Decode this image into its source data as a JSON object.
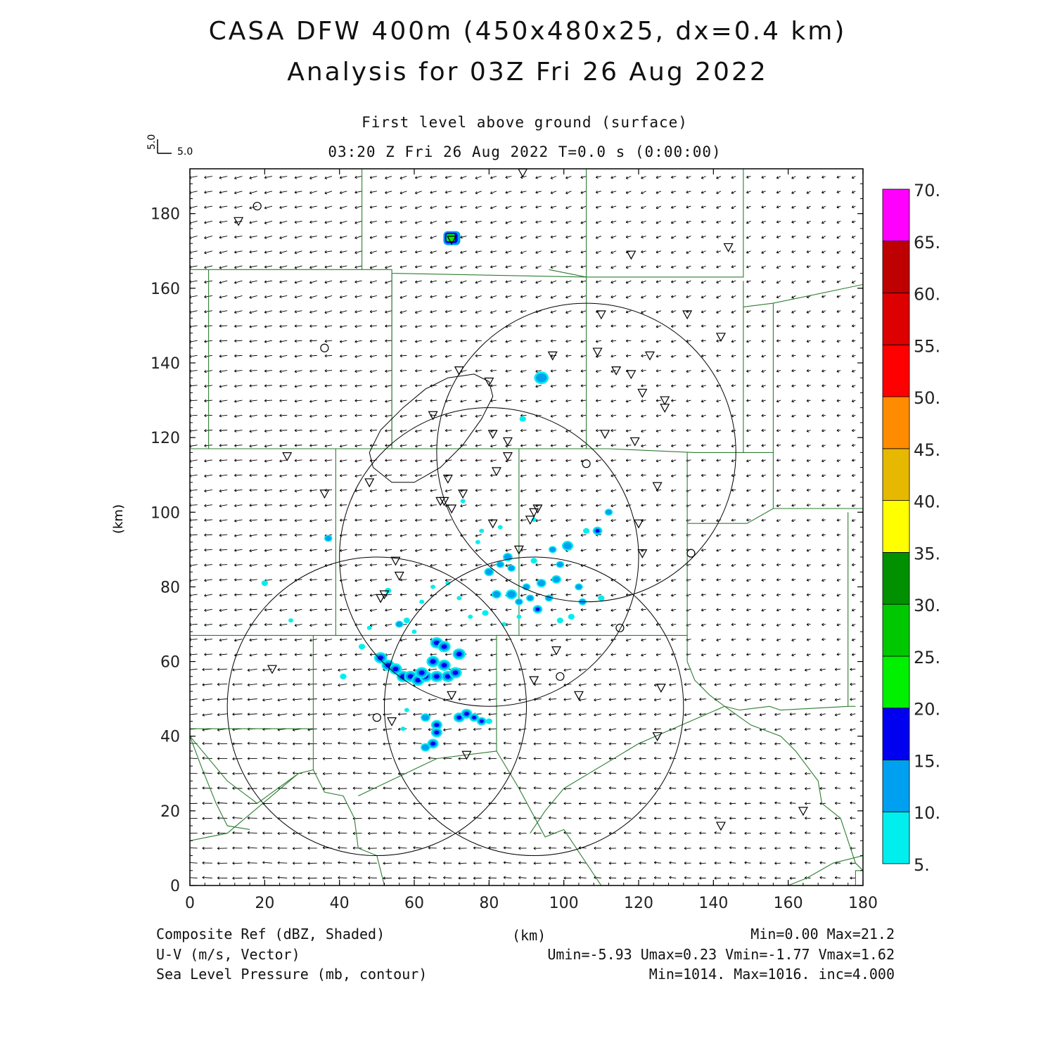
{
  "titles": {
    "line1": "CASA DFW 400m (450x480x25, dx=0.4 km)",
    "line2": "Analysis for 03Z Fri 26 Aug 2022",
    "level": "First level above ground (surface)",
    "time": "03:20 Z Fri 26 Aug 2022    T=0.0 s (0:00:00)"
  },
  "ref_vector": {
    "u_label": "5.0",
    "v_label": "5.0"
  },
  "axes": {
    "x_label": "(km)",
    "y_label": "(km)",
    "x_range": [
      0,
      180
    ],
    "y_range": [
      0,
      192
    ],
    "x_ticks": [
      "0",
      "20",
      "40",
      "60",
      "80",
      "100",
      "120",
      "140",
      "160",
      "180"
    ],
    "y_ticks": [
      "0",
      "20",
      "40",
      "60",
      "80",
      "100",
      "120",
      "140",
      "160",
      "180"
    ]
  },
  "colorbar": {
    "labels": [
      "5.",
      "10.",
      "15.",
      "20.",
      "25.",
      "30.",
      "35.",
      "40.",
      "45.",
      "50.",
      "55.",
      "60.",
      "65.",
      "70."
    ],
    "colors": [
      "#00eeee",
      "#00a0f0",
      "#0000f0",
      "#00f000",
      "#00c800",
      "#009000",
      "#ffff00",
      "#e6b800",
      "#ff8c00",
      "#ff0000",
      "#dc0000",
      "#be0000",
      "#ff00ff"
    ]
  },
  "footer": {
    "field1": "Composite Ref (dBZ, Shaded)",
    "field2": "U-V (m/s, Vector)",
    "field3": "Sea Level Pressure (mb, contour)",
    "xunit": "(km)",
    "stats1": "Min=0.00 Max=21.2",
    "stats2": "Umin=-5.93 Umax=0.23 Vmin=-1.77 Vmax=1.62",
    "stats3": "Min=1014. Max=1016. inc=4.000"
  },
  "map_colors": {
    "county": "#2e7d32",
    "range_ring": "#000000",
    "vector": "#000000"
  },
  "radar_rings_km": [
    {
      "cx": 50,
      "cy": 48,
      "r": 40
    },
    {
      "cx": 80,
      "cy": 88,
      "r": 40
    },
    {
      "cx": 92,
      "cy": 48,
      "r": 40
    },
    {
      "cx": 106,
      "cy": 116,
      "r": 40
    }
  ],
  "stations_circle": [
    [
      18,
      182
    ],
    [
      36,
      144
    ],
    [
      106,
      113
    ],
    [
      115,
      69
    ],
    [
      99,
      56
    ],
    [
      50,
      45
    ],
    [
      134,
      89
    ]
  ],
  "stations_triangle": [
    [
      13,
      178
    ],
    [
      70,
      173
    ],
    [
      118,
      169
    ],
    [
      144,
      171
    ],
    [
      89,
      191
    ],
    [
      110,
      153
    ],
    [
      133,
      153
    ],
    [
      142,
      147
    ],
    [
      97,
      142
    ],
    [
      109,
      143
    ],
    [
      123,
      142
    ],
    [
      114,
      138
    ],
    [
      118,
      137
    ],
    [
      72,
      138
    ],
    [
      80,
      135
    ],
    [
      121,
      132
    ],
    [
      127,
      130
    ],
    [
      127,
      128
    ],
    [
      65,
      126
    ],
    [
      81,
      121
    ],
    [
      85,
      119
    ],
    [
      111,
      121
    ],
    [
      119,
      119
    ],
    [
      26,
      115
    ],
    [
      85,
      115
    ],
    [
      36,
      105
    ],
    [
      48,
      108
    ],
    [
      82,
      111
    ],
    [
      69,
      109
    ],
    [
      73,
      105
    ],
    [
      67,
      103
    ],
    [
      68,
      103
    ],
    [
      70,
      101
    ],
    [
      125,
      107
    ],
    [
      93,
      101
    ],
    [
      92,
      100
    ],
    [
      91,
      98
    ],
    [
      81,
      97
    ],
    [
      120,
      97
    ],
    [
      88,
      90
    ],
    [
      121,
      89
    ],
    [
      55,
      87
    ],
    [
      56,
      83
    ],
    [
      52,
      78
    ],
    [
      51,
      77
    ],
    [
      98,
      63
    ],
    [
      22,
      58
    ],
    [
      92,
      55
    ],
    [
      126,
      53
    ],
    [
      104,
      51
    ],
    [
      70,
      51
    ],
    [
      54,
      44
    ],
    [
      125,
      40
    ],
    [
      74,
      35
    ],
    [
      142,
      16
    ],
    [
      164,
      20
    ]
  ]
}
